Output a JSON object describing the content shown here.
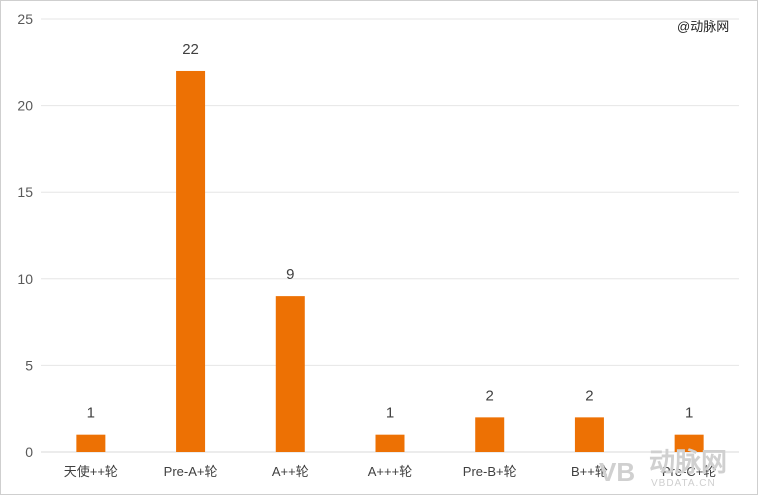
{
  "credit": "@动脉网",
  "watermark": {
    "logo": "VB",
    "name": "动脉网",
    "domain": "VBDATA.CN"
  },
  "chart_data": {
    "type": "bar",
    "title": "",
    "xlabel": "",
    "ylabel": "",
    "categories": [
      "天使++轮",
      "Pre-A+轮",
      "A++轮",
      "A+++轮",
      "Pre-B+轮",
      "B++轮",
      "Pre-C+轮"
    ],
    "values": [
      1,
      22,
      9,
      1,
      2,
      2,
      1
    ],
    "ylim": [
      0,
      25
    ],
    "yticks": [
      0,
      5,
      10,
      15,
      20,
      25
    ],
    "grid": true,
    "bar_color": "#ed7104",
    "data_labels": true
  }
}
